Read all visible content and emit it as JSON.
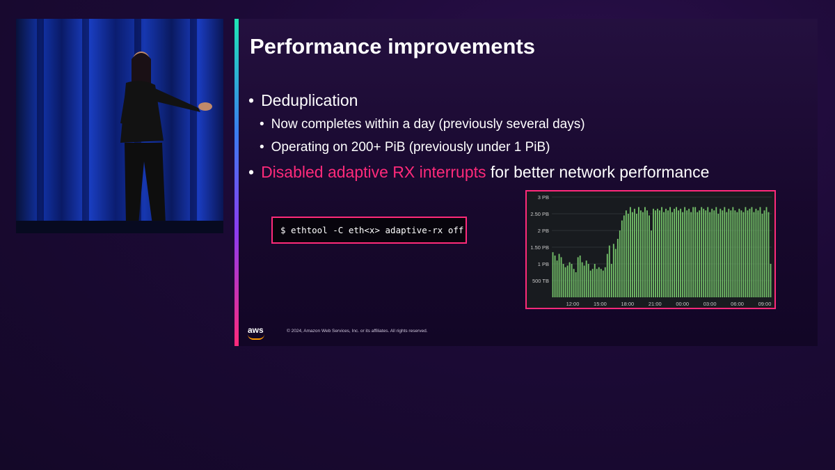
{
  "slide": {
    "title": "Performance improvements",
    "bullets": [
      {
        "text": "Deduplication"
      },
      {
        "text": "Now completes within a day (previously several days)"
      },
      {
        "text": "Operating on 200+ PiB (previously under 1 PiB)"
      },
      {
        "highlight": "Disabled adaptive RX interrupts",
        "text": " for better network performance"
      }
    ],
    "command": "$ ethtool -C eth<x> adaptive-rx off",
    "logo": "aws",
    "copyright": "© 2024, Amazon Web Services, Inc. or its affiliates. All rights reserved."
  },
  "colors": {
    "accent_pink": "#ff2a7a",
    "bar_green": "#73bf69",
    "chart_bg": "#181b1f"
  },
  "chart_data": {
    "type": "bar",
    "ylabel": "",
    "yticks": [
      "500 TB",
      "1 PB",
      "1.50 PB",
      "2 PB",
      "2.50 PB",
      "3 PB"
    ],
    "xticks": [
      "12:00",
      "15:00",
      "18:00",
      "21:00",
      "00:00",
      "03:00",
      "06:00",
      "09:00"
    ],
    "ylim": [
      0,
      3
    ],
    "unit": "PB",
    "values": [
      1.35,
      1.25,
      1.1,
      1.3,
      1.2,
      1.0,
      0.9,
      0.95,
      1.05,
      1.0,
      0.85,
      0.75,
      1.2,
      1.25,
      1.05,
      0.95,
      1.1,
      1.0,
      0.8,
      0.85,
      1.0,
      0.85,
      0.9,
      0.85,
      0.8,
      0.9,
      1.3,
      1.55,
      1.0,
      1.6,
      1.45,
      1.75,
      2.0,
      2.3,
      2.45,
      2.6,
      2.5,
      2.7,
      2.55,
      2.65,
      2.5,
      2.7,
      2.6,
      2.55,
      2.7,
      2.6,
      2.45,
      2.0,
      2.65,
      2.6,
      2.65,
      2.6,
      2.7,
      2.55,
      2.65,
      2.6,
      2.7,
      2.55,
      2.65,
      2.7,
      2.6,
      2.65,
      2.55,
      2.7,
      2.6,
      2.65,
      2.55,
      2.7,
      2.7,
      2.55,
      2.6,
      2.7,
      2.65,
      2.6,
      2.7,
      2.55,
      2.65,
      2.6,
      2.7,
      2.5,
      2.65,
      2.6,
      2.7,
      2.55,
      2.65,
      2.6,
      2.7,
      2.6,
      2.55,
      2.65,
      2.6,
      2.55,
      2.7,
      2.6,
      2.65,
      2.7,
      2.55,
      2.65,
      2.6,
      2.7,
      2.5,
      2.6,
      2.7,
      2.55,
      1.0
    ]
  }
}
